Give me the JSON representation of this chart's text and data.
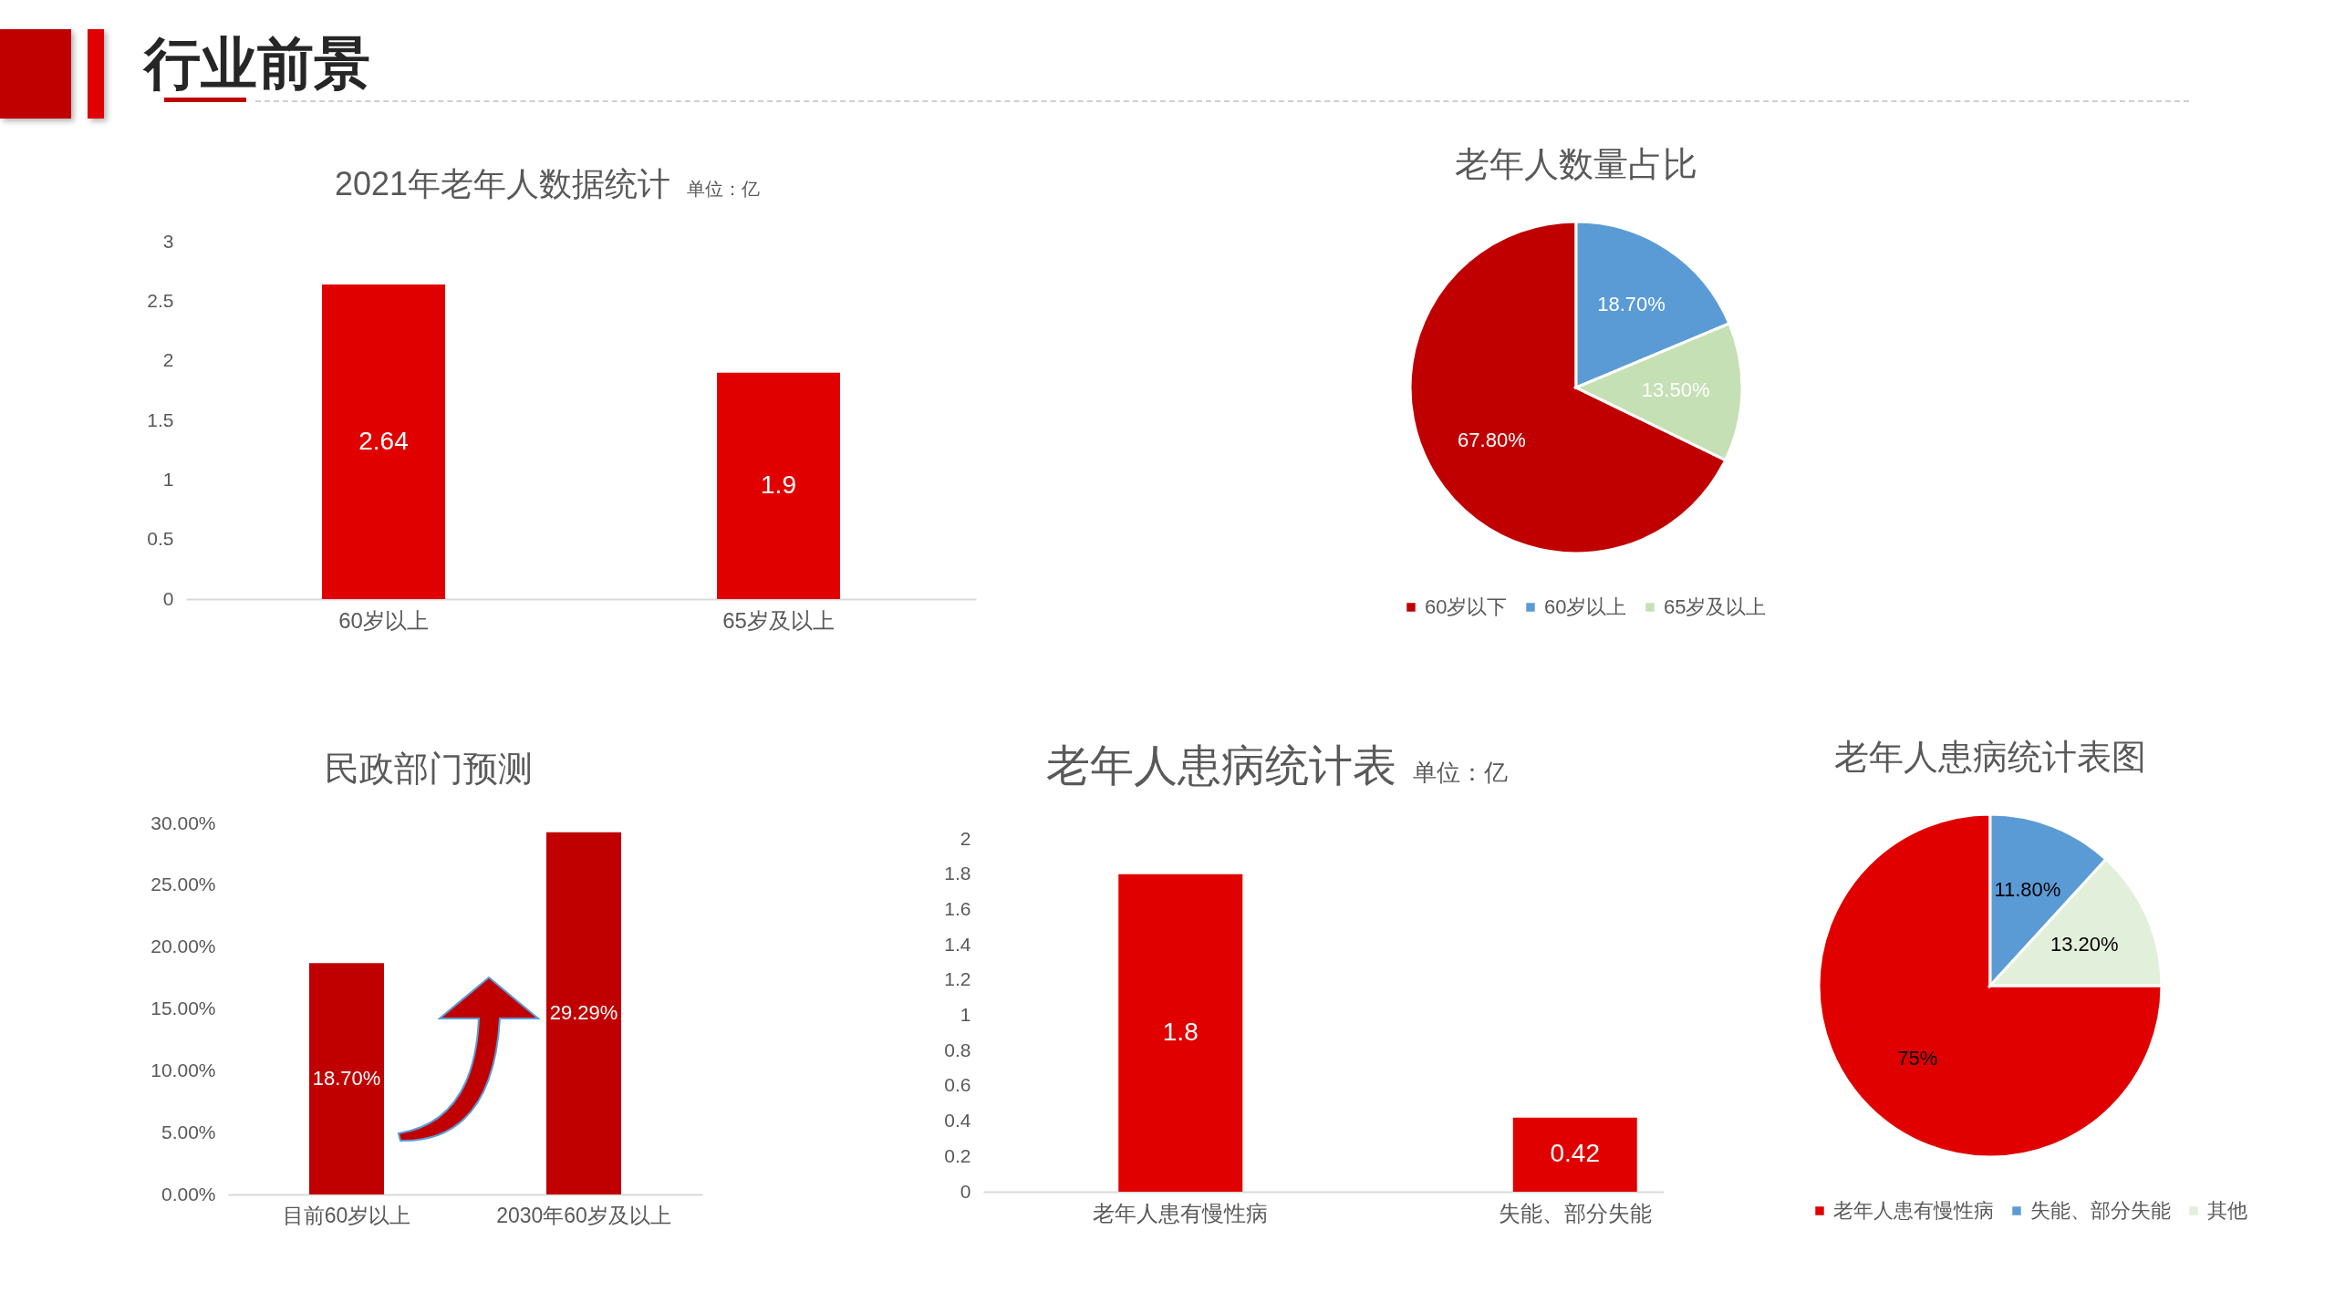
{
  "chart_data": [
    {
      "type": "other",
      "title": "行业前景"
    },
    {
      "type": "bar",
      "title": "2021年老年人数据统计",
      "subtitle": "单位：亿",
      "categories": [
        "60岁以上",
        "65岁及以上"
      ],
      "values": [
        2.64,
        1.9
      ],
      "color": "#e00000",
      "ylim": [
        0,
        3
      ],
      "yticks": [
        0,
        0.5,
        1,
        1.5,
        2,
        2.5,
        3
      ],
      "data_labels": true
    },
    {
      "type": "pie",
      "title": "老年人数量占比",
      "categories": [
        "60岁以下",
        "60岁以上",
        "65岁及以上"
      ],
      "values": [
        67.8,
        18.7,
        13.5
      ],
      "colors": [
        "#c00000",
        "#5b9bd5",
        "#c5e0b4"
      ],
      "value_labels": [
        "67.80%",
        "18.70%",
        "13.50%"
      ],
      "legend": "bottom"
    },
    {
      "type": "bar",
      "title": "民政部门预测",
      "categories": [
        "目前60岁以上",
        "2030年60岁及以上"
      ],
      "values": [
        18.7,
        29.29
      ],
      "color": "#c00000",
      "value_labels": [
        "18.70%",
        "29.29%"
      ],
      "ylim": [
        0,
        30
      ],
      "yticks": [
        {
          "value": 0,
          "label": "0.00%"
        },
        {
          "value": 5,
          "label": "5.00%"
        },
        {
          "value": 10,
          "label": "10.00%"
        },
        {
          "value": 15,
          "label": "15.00%"
        },
        {
          "value": 20,
          "label": "20.00%"
        },
        {
          "value": 25,
          "label": "25.00%"
        },
        {
          "value": 30,
          "label": "30.00%"
        }
      ]
    },
    {
      "type": "bar",
      "title": "老年人患病统计表",
      "subtitle": "单位：亿",
      "categories": [
        "老年人患有慢性病",
        "失能、部分失能"
      ],
      "values": [
        1.8,
        0.42
      ],
      "color": "#e00000",
      "ylim": [
        0,
        2
      ],
      "yticks": [
        0,
        0.2,
        0.4,
        0.6,
        0.8,
        1,
        1.2,
        1.4,
        1.6,
        1.8,
        2
      ],
      "data_labels": true
    },
    {
      "type": "pie",
      "title": "老年人患病统计表图",
      "categories": [
        "老年人患有慢性病",
        "失能、部分失能",
        "其他"
      ],
      "values": [
        75,
        11.8,
        13.2
      ],
      "colors": [
        "#e00000",
        "#5b9bd5",
        "#e2efda"
      ],
      "value_labels": [
        "75%",
        "11.80%",
        "13.20%"
      ],
      "legend": "bottom"
    }
  ]
}
